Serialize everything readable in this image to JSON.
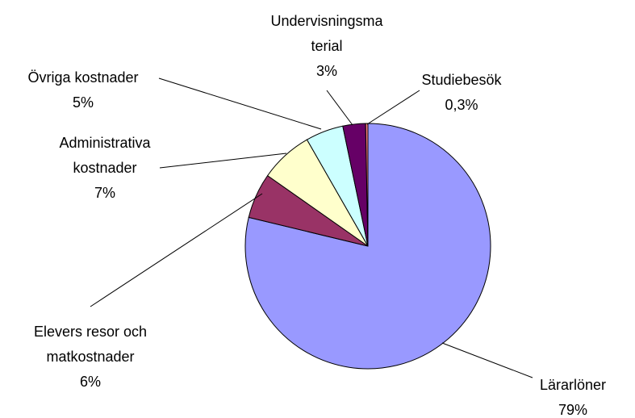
{
  "chart_data": {
    "type": "pie",
    "categories": [
      [
        "Lärarlöner"
      ],
      [
        "Elevers resor och",
        "matkostnader"
      ],
      [
        "Administrativa",
        "kostnader"
      ],
      [
        "Övriga kostnader"
      ],
      [
        "Undervisningsma",
        "terial"
      ],
      [
        "Studiebesök"
      ]
    ],
    "values": [
      79,
      6,
      7,
      5,
      3,
      0.3
    ],
    "value_labels": [
      "79%",
      "6%",
      "7%",
      "5%",
      "3%",
      "0,3%"
    ],
    "colors": [
      "#9999ff",
      "#993366",
      "#ffffcc",
      "#ccffff",
      "#660066",
      "#ff8080"
    ]
  }
}
